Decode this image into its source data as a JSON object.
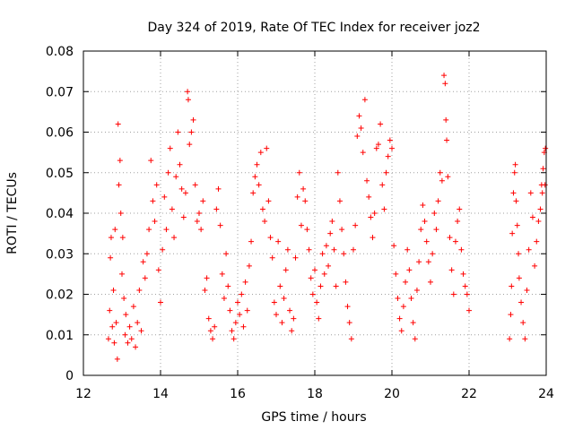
{
  "chart_data": {
    "type": "scatter",
    "title": "Day 324 of 2019, Rate Of TEC Index for receiver joz2",
    "xlabel": "GPS time / hours",
    "ylabel": "ROTI / TECUs",
    "xlim": [
      12,
      24
    ],
    "ylim": [
      0,
      0.08
    ],
    "xticks": [
      12,
      14,
      16,
      18,
      20,
      22,
      24
    ],
    "yticks": [
      0,
      0.01,
      0.02,
      0.03,
      0.04,
      0.05,
      0.06,
      0.07,
      0.08
    ],
    "xtick_labels": [
      "12",
      "14",
      "16",
      "18",
      "20",
      "22",
      "24"
    ],
    "ytick_labels": [
      "0",
      "0.01",
      "0.02",
      "0.03",
      "0.04",
      "0.05",
      "0.06",
      "0.07",
      "0.08"
    ],
    "grid": true,
    "marker": "plus",
    "series": [
      {
        "name": "ROTI",
        "color": "#ff0000",
        "points": [
          [
            12.65,
            0.009
          ],
          [
            12.68,
            0.016
          ],
          [
            12.7,
            0.029
          ],
          [
            12.72,
            0.034
          ],
          [
            12.75,
            0.012
          ],
          [
            12.78,
            0.021
          ],
          [
            12.8,
            0.008
          ],
          [
            12.82,
            0.036
          ],
          [
            12.85,
            0.013
          ],
          [
            12.88,
            0.004
          ],
          [
            12.9,
            0.062
          ],
          [
            12.92,
            0.047
          ],
          [
            12.95,
            0.053
          ],
          [
            12.97,
            0.04
          ],
          [
            13.0,
            0.025
          ],
          [
            13.02,
            0.034
          ],
          [
            13.05,
            0.019
          ],
          [
            13.08,
            0.01
          ],
          [
            13.1,
            0.015
          ],
          [
            13.15,
            0.008
          ],
          [
            13.2,
            0.012
          ],
          [
            13.25,
            0.009
          ],
          [
            13.3,
            0.017
          ],
          [
            13.35,
            0.007
          ],
          [
            13.4,
            0.013
          ],
          [
            13.45,
            0.021
          ],
          [
            13.5,
            0.011
          ],
          [
            13.55,
            0.028
          ],
          [
            13.6,
            0.024
          ],
          [
            13.65,
            0.03
          ],
          [
            13.7,
            0.036
          ],
          [
            13.75,
            0.053
          ],
          [
            13.8,
            0.043
          ],
          [
            13.85,
            0.038
          ],
          [
            13.9,
            0.047
          ],
          [
            13.95,
            0.026
          ],
          [
            14.0,
            0.018
          ],
          [
            14.05,
            0.031
          ],
          [
            14.1,
            0.044
          ],
          [
            14.15,
            0.036
          ],
          [
            14.2,
            0.05
          ],
          [
            14.25,
            0.056
          ],
          [
            14.3,
            0.041
          ],
          [
            14.35,
            0.034
          ],
          [
            14.4,
            0.049
          ],
          [
            14.45,
            0.06
          ],
          [
            14.5,
            0.052
          ],
          [
            14.55,
            0.046
          ],
          [
            14.6,
            0.039
          ],
          [
            14.65,
            0.045
          ],
          [
            14.7,
            0.07
          ],
          [
            14.72,
            0.068
          ],
          [
            14.75,
            0.057
          ],
          [
            14.8,
            0.06
          ],
          [
            14.85,
            0.063
          ],
          [
            14.9,
            0.047
          ],
          [
            14.95,
            0.038
          ],
          [
            15.0,
            0.04
          ],
          [
            15.05,
            0.036
          ],
          [
            15.1,
            0.043
          ],
          [
            15.15,
            0.021
          ],
          [
            15.2,
            0.024
          ],
          [
            15.25,
            0.014
          ],
          [
            15.3,
            0.011
          ],
          [
            15.35,
            0.009
          ],
          [
            15.4,
            0.012
          ],
          [
            15.45,
            0.041
          ],
          [
            15.5,
            0.046
          ],
          [
            15.55,
            0.037
          ],
          [
            15.6,
            0.025
          ],
          [
            15.65,
            0.019
          ],
          [
            15.7,
            0.03
          ],
          [
            15.75,
            0.022
          ],
          [
            15.8,
            0.016
          ],
          [
            15.85,
            0.011
          ],
          [
            15.9,
            0.009
          ],
          [
            15.95,
            0.013
          ],
          [
            16.0,
            0.018
          ],
          [
            16.05,
            0.015
          ],
          [
            16.1,
            0.02
          ],
          [
            16.15,
            0.012
          ],
          [
            16.2,
            0.023
          ],
          [
            16.25,
            0.016
          ],
          [
            16.3,
            0.027
          ],
          [
            16.35,
            0.033
          ],
          [
            16.4,
            0.045
          ],
          [
            16.45,
            0.049
          ],
          [
            16.5,
            0.052
          ],
          [
            16.55,
            0.047
          ],
          [
            16.6,
            0.055
          ],
          [
            16.65,
            0.041
          ],
          [
            16.7,
            0.038
          ],
          [
            16.75,
            0.056
          ],
          [
            16.8,
            0.043
          ],
          [
            16.85,
            0.034
          ],
          [
            16.9,
            0.029
          ],
          [
            16.95,
            0.018
          ],
          [
            17.0,
            0.015
          ],
          [
            17.05,
            0.033
          ],
          [
            17.1,
            0.022
          ],
          [
            17.15,
            0.013
          ],
          [
            17.2,
            0.019
          ],
          [
            17.25,
            0.026
          ],
          [
            17.3,
            0.031
          ],
          [
            17.35,
            0.016
          ],
          [
            17.4,
            0.011
          ],
          [
            17.45,
            0.014
          ],
          [
            17.5,
            0.029
          ],
          [
            17.55,
            0.044
          ],
          [
            17.6,
            0.05
          ],
          [
            17.65,
            0.037
          ],
          [
            17.7,
            0.046
          ],
          [
            17.75,
            0.043
          ],
          [
            17.8,
            0.036
          ],
          [
            17.85,
            0.031
          ],
          [
            17.9,
            0.024
          ],
          [
            17.95,
            0.02
          ],
          [
            18.0,
            0.026
          ],
          [
            18.05,
            0.018
          ],
          [
            18.1,
            0.014
          ],
          [
            18.15,
            0.022
          ],
          [
            18.2,
            0.03
          ],
          [
            18.25,
            0.025
          ],
          [
            18.3,
            0.032
          ],
          [
            18.35,
            0.027
          ],
          [
            18.4,
            0.035
          ],
          [
            18.45,
            0.038
          ],
          [
            18.5,
            0.031
          ],
          [
            18.55,
            0.022
          ],
          [
            18.6,
            0.05
          ],
          [
            18.65,
            0.043
          ],
          [
            18.7,
            0.036
          ],
          [
            18.75,
            0.03
          ],
          [
            18.8,
            0.023
          ],
          [
            18.85,
            0.017
          ],
          [
            18.9,
            0.013
          ],
          [
            18.95,
            0.009
          ],
          [
            19.0,
            0.031
          ],
          [
            19.05,
            0.037
          ],
          [
            19.1,
            0.059
          ],
          [
            19.15,
            0.064
          ],
          [
            19.2,
            0.061
          ],
          [
            19.25,
            0.055
          ],
          [
            19.3,
            0.068
          ],
          [
            19.35,
            0.048
          ],
          [
            19.4,
            0.044
          ],
          [
            19.45,
            0.039
          ],
          [
            19.5,
            0.034
          ],
          [
            19.55,
            0.04
          ],
          [
            19.6,
            0.056
          ],
          [
            19.65,
            0.057
          ],
          [
            19.7,
            0.062
          ],
          [
            19.75,
            0.047
          ],
          [
            19.8,
            0.041
          ],
          [
            19.85,
            0.05
          ],
          [
            19.9,
            0.054
          ],
          [
            19.95,
            0.058
          ],
          [
            20.0,
            0.056
          ],
          [
            20.05,
            0.032
          ],
          [
            20.1,
            0.025
          ],
          [
            20.15,
            0.019
          ],
          [
            20.2,
            0.014
          ],
          [
            20.25,
            0.011
          ],
          [
            20.3,
            0.017
          ],
          [
            20.35,
            0.023
          ],
          [
            20.4,
            0.031
          ],
          [
            20.45,
            0.026
          ],
          [
            20.5,
            0.019
          ],
          [
            20.55,
            0.013
          ],
          [
            20.6,
            0.009
          ],
          [
            20.65,
            0.021
          ],
          [
            20.7,
            0.028
          ],
          [
            20.75,
            0.036
          ],
          [
            20.8,
            0.042
          ],
          [
            20.85,
            0.038
          ],
          [
            20.9,
            0.033
          ],
          [
            20.95,
            0.028
          ],
          [
            21.0,
            0.023
          ],
          [
            21.05,
            0.03
          ],
          [
            21.1,
            0.04
          ],
          [
            21.15,
            0.036
          ],
          [
            21.2,
            0.043
          ],
          [
            21.25,
            0.05
          ],
          [
            21.3,
            0.048
          ],
          [
            21.35,
            0.074
          ],
          [
            21.38,
            0.072
          ],
          [
            21.4,
            0.063
          ],
          [
            21.42,
            0.058
          ],
          [
            21.45,
            0.049
          ],
          [
            21.5,
            0.034
          ],
          [
            21.55,
            0.026
          ],
          [
            21.6,
            0.02
          ],
          [
            21.65,
            0.033
          ],
          [
            21.7,
            0.038
          ],
          [
            21.75,
            0.041
          ],
          [
            21.8,
            0.031
          ],
          [
            21.85,
            0.025
          ],
          [
            21.9,
            0.022
          ],
          [
            21.95,
            0.02
          ],
          [
            22.0,
            0.016
          ],
          [
            23.05,
            0.009
          ],
          [
            23.08,
            0.015
          ],
          [
            23.1,
            0.022
          ],
          [
            23.12,
            0.035
          ],
          [
            23.15,
            0.045
          ],
          [
            23.18,
            0.05
          ],
          [
            23.2,
            0.052
          ],
          [
            23.22,
            0.043
          ],
          [
            23.25,
            0.037
          ],
          [
            23.28,
            0.03
          ],
          [
            23.3,
            0.024
          ],
          [
            23.35,
            0.018
          ],
          [
            23.4,
            0.013
          ],
          [
            23.45,
            0.009
          ],
          [
            23.5,
            0.021
          ],
          [
            23.55,
            0.031
          ],
          [
            23.6,
            0.045
          ],
          [
            23.65,
            0.039
          ],
          [
            23.7,
            0.027
          ],
          [
            23.75,
            0.033
          ],
          [
            23.8,
            0.038
          ],
          [
            23.85,
            0.041
          ],
          [
            23.88,
            0.047
          ],
          [
            23.9,
            0.045
          ],
          [
            23.92,
            0.051
          ],
          [
            23.95,
            0.055
          ],
          [
            23.97,
            0.047
          ],
          [
            23.98,
            0.056
          ]
        ]
      }
    ]
  }
}
